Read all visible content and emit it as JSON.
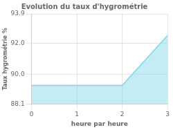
{
  "chart_data": {
    "type": "area",
    "title": "Evolution du taux d'hygrométrie",
    "xlabel": "heure par heure",
    "ylabel": "Taux hygrométrie %",
    "x": [
      0,
      2,
      3
    ],
    "values": [
      89.3,
      89.3,
      92.5
    ],
    "color": "#7dd4e8",
    "xlim": [
      0,
      3
    ],
    "ylim": [
      88.1,
      93.9
    ],
    "xticks": [
      0,
      1,
      2,
      3
    ],
    "yticks": [
      88.1,
      {
        "value": 90,
        "label": "90.0"
      },
      {
        "value": 92,
        "label": "92.0"
      },
      93.9
    ],
    "grid": true
  }
}
